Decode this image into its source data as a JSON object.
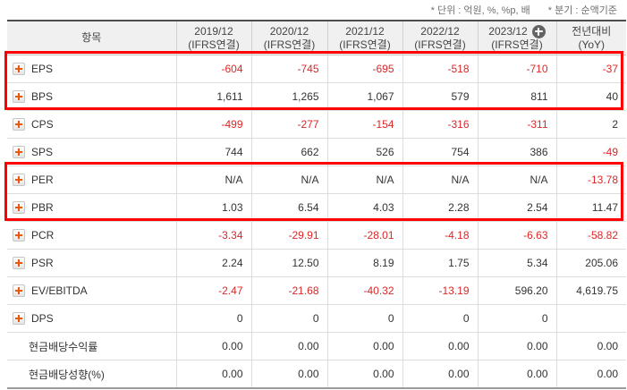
{
  "notes": {
    "unit_label": "* 단위 : 억원, %, %p, 배",
    "basis_label": "* 분기 : 순액기준"
  },
  "table": {
    "columns": {
      "item": "항목",
      "years": [
        {
          "period": "2019/12",
          "standard": "(IFRS연결)"
        },
        {
          "period": "2020/12",
          "standard": "(IFRS연결)"
        },
        {
          "period": "2021/12",
          "standard": "(IFRS연결)"
        },
        {
          "period": "2022/12",
          "standard": "(IFRS연결)",
          "add_icon": true
        },
        {
          "period": "2023/12",
          "standard": "(IFRS연결)"
        }
      ],
      "year_periods": [
        "2019/12",
        "2020/12",
        "2021/12",
        "2022/12",
        "2023/12"
      ],
      "yoy": {
        "period": "전년대비",
        "standard": "(YoY)"
      }
    },
    "rows": [
      {
        "label": "EPS",
        "icon": true,
        "values": [
          "-604",
          "-745",
          "-695",
          "-518",
          "-710",
          "-37"
        ],
        "red": [
          1,
          1,
          1,
          1,
          1,
          1
        ]
      },
      {
        "label": "BPS",
        "icon": true,
        "values": [
          "1,611",
          "1,265",
          "1,067",
          "579",
          "811",
          "40"
        ],
        "red": [
          0,
          0,
          0,
          0,
          0,
          0
        ]
      },
      {
        "label": "CPS",
        "icon": true,
        "values": [
          "-499",
          "-277",
          "-154",
          "-316",
          "-311",
          "2"
        ],
        "red": [
          1,
          1,
          1,
          1,
          1,
          0
        ]
      },
      {
        "label": "SPS",
        "icon": true,
        "values": [
          "744",
          "662",
          "526",
          "754",
          "386",
          "-49"
        ],
        "red": [
          0,
          0,
          0,
          0,
          0,
          1
        ]
      },
      {
        "label": "PER",
        "icon": true,
        "values": [
          "N/A",
          "N/A",
          "N/A",
          "N/A",
          "N/A",
          "-13.78"
        ],
        "red": [
          0,
          0,
          0,
          0,
          0,
          1
        ]
      },
      {
        "label": "PBR",
        "icon": true,
        "values": [
          "1.03",
          "6.54",
          "4.03",
          "2.28",
          "2.54",
          "11.47"
        ],
        "red": [
          0,
          0,
          0,
          0,
          0,
          0
        ]
      },
      {
        "label": "PCR",
        "icon": true,
        "values": [
          "-3.34",
          "-29.91",
          "-28.01",
          "-4.18",
          "-6.63",
          "-58.82"
        ],
        "red": [
          1,
          1,
          1,
          1,
          1,
          1
        ]
      },
      {
        "label": "PSR",
        "icon": true,
        "values": [
          "2.24",
          "12.50",
          "8.19",
          "1.75",
          "5.34",
          "205.06"
        ],
        "red": [
          0,
          0,
          0,
          0,
          0,
          0
        ]
      },
      {
        "label": "EV/EBITDA",
        "icon": true,
        "values": [
          "-2.47",
          "-21.68",
          "-40.32",
          "-13.19",
          "596.20",
          "4,619.75"
        ],
        "red": [
          1,
          1,
          1,
          1,
          0,
          0
        ]
      },
      {
        "label": "DPS",
        "icon": true,
        "values": [
          "0",
          "0",
          "0",
          "0",
          "0",
          ""
        ],
        "red": [
          0,
          0,
          0,
          0,
          0,
          0
        ]
      },
      {
        "label": "현금배당수익률",
        "icon": false,
        "values": [
          "0.00",
          "0.00",
          "0.00",
          "0.00",
          "0.00",
          "0.00"
        ],
        "red": [
          0,
          0,
          0,
          0,
          0,
          0
        ]
      },
      {
        "label": "현금배당성향(%)",
        "icon": false,
        "values": [
          "0.00",
          "0.00",
          "0.00",
          "0.00",
          "0.00",
          "0.00"
        ],
        "red": [
          0,
          0,
          0,
          0,
          0,
          0
        ]
      }
    ],
    "highlights": [
      {
        "name": "eps-bps-highlight",
        "first_row": 0,
        "row_count": 2
      },
      {
        "name": "per-pbr-highlight",
        "first_row": 4,
        "row_count": 2
      }
    ]
  },
  "colors": {
    "negative_value": "#dd2727",
    "highlight_border": "#ff0000",
    "row_expand_icon": "#e8590c",
    "column_add_icon_bg": "#636363",
    "header_background": "#f0f0f0"
  }
}
